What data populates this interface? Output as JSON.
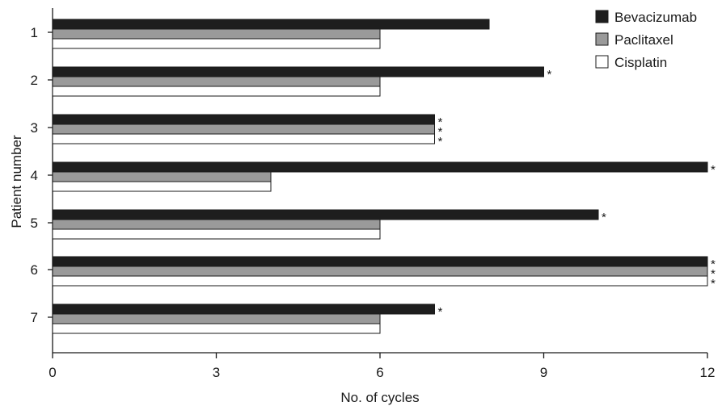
{
  "chart_data": {
    "type": "bar",
    "orientation": "horizontal",
    "title": "",
    "xlabel": "No. of cycles",
    "ylabel": "Patient number",
    "xlim": [
      0,
      12
    ],
    "xticks": [
      "0",
      "3",
      "6",
      "9",
      "12"
    ],
    "categories": [
      "1",
      "2",
      "3",
      "4",
      "5",
      "6",
      "7"
    ],
    "series": [
      {
        "name": "Bevacizumab",
        "color": "#1e1e1e",
        "values": [
          8,
          9,
          7,
          12,
          10,
          12,
          7
        ],
        "stars": [
          "",
          "*",
          "*",
          "*",
          "*",
          "*",
          "*"
        ]
      },
      {
        "name": "Paclitaxel",
        "color": "#9a9a9a",
        "values": [
          6,
          6,
          7,
          4,
          6,
          12,
          6
        ],
        "stars": [
          "",
          "",
          "*",
          "",
          "",
          "*",
          ""
        ]
      },
      {
        "name": "Cisplatin",
        "color": "#ffffff",
        "values": [
          6,
          6,
          7,
          4,
          6,
          12,
          6
        ],
        "stars": [
          "",
          "",
          "*",
          "",
          "",
          "*",
          ""
        ]
      }
    ],
    "legend_position": "top-right",
    "grid": false
  }
}
